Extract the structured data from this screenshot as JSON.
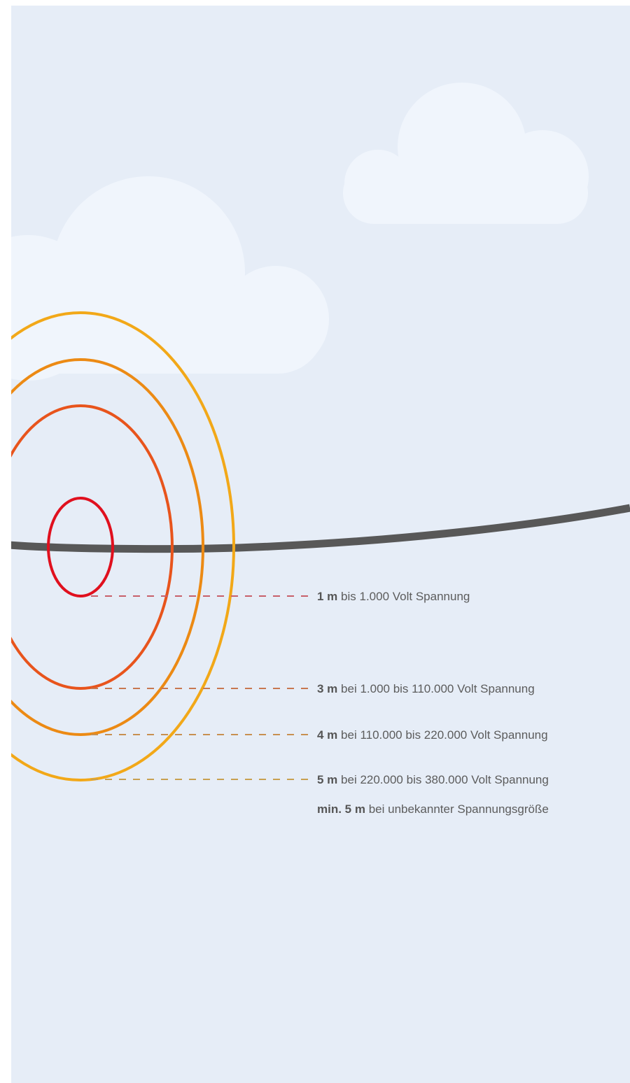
{
  "colors": {
    "background": "#e6edf7",
    "cloud": "#f0f5fc",
    "cable": "#585858",
    "ring_1m": "#e0101e",
    "ring_3m": "#e8541c",
    "ring_4m": "#ec8a14",
    "ring_5m": "#f2a818",
    "text": "#5c5c5c"
  },
  "labels": [
    {
      "distance": "1 m",
      "text": "bis 1.000 Volt Spannung"
    },
    {
      "distance": "3 m",
      "text": "bei 1.000 bis 110.000 Volt Spannung"
    },
    {
      "distance": "4 m",
      "text": "bei 110.000 bis 220.000 Volt Spannung"
    },
    {
      "distance": "5 m",
      "text": "bei 220.000 bis 380.000 Volt Spannung"
    },
    {
      "distance": "min. 5 m",
      "text": "bei unbekannter Spannungsgröße"
    }
  ]
}
